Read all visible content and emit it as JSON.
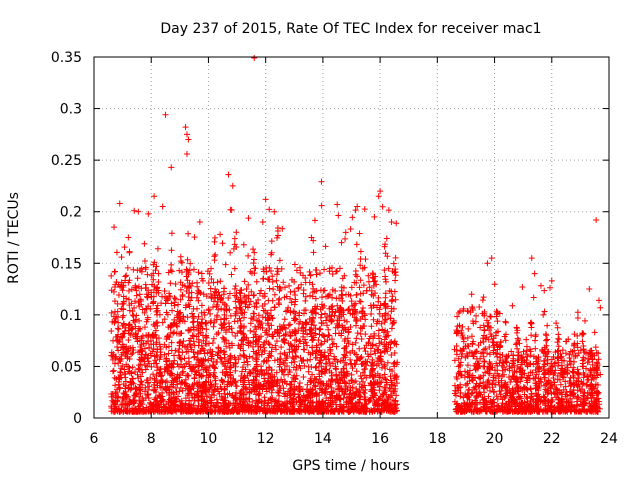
{
  "chart_data": {
    "type": "scatter",
    "title": "Day 237 of 2015, Rate Of TEC Index for receiver mac1",
    "xlabel": "GPS time / hours",
    "ylabel": "ROTI / TECUs",
    "xlim": [
      6,
      24
    ],
    "ylim": [
      0,
      0.35
    ],
    "xticks": [
      6,
      8,
      10,
      12,
      14,
      16,
      18,
      20,
      22,
      24
    ],
    "yticks": [
      0,
      0.05,
      0.1,
      0.15,
      0.2,
      0.25,
      0.3,
      0.35
    ],
    "xtick_labels": [
      "6",
      "8",
      "10",
      "12",
      "14",
      "16",
      "18",
      "20",
      "22",
      "24"
    ],
    "ytick_labels": [
      "0",
      "0.05",
      "0.1",
      "0.15",
      "0.2",
      "0.25",
      "0.3",
      "0.35"
    ],
    "grid": true,
    "marker": "+",
    "color": "#ff0000",
    "series": [
      {
        "name": "ROTI",
        "segments": [
          {
            "x_range": [
              6.6,
              16.6
            ],
            "description": "dense point cloud, typical 0.01-0.12 TECU/min",
            "outliers": [
              {
                "x": 8.5,
                "y": 0.294
              },
              {
                "x": 9.2,
                "y": 0.282
              },
              {
                "x": 9.25,
                "y": 0.275
              },
              {
                "x": 9.3,
                "y": 0.27
              },
              {
                "x": 11.6,
                "y": 0.349
              },
              {
                "x": 10.7,
                "y": 0.236
              },
              {
                "x": 13.95,
                "y": 0.229
              },
              {
                "x": 8.7,
                "y": 0.243
              },
              {
                "x": 9.25,
                "y": 0.256
              },
              {
                "x": 16.0,
                "y": 0.22
              },
              {
                "x": 15.95,
                "y": 0.215
              },
              {
                "x": 6.9,
                "y": 0.208
              },
              {
                "x": 10.85,
                "y": 0.225
              },
              {
                "x": 12.0,
                "y": 0.212
              },
              {
                "x": 12.3,
                "y": 0.2
              },
              {
                "x": 14.5,
                "y": 0.207
              },
              {
                "x": 15.2,
                "y": 0.205
              },
              {
                "x": 15.8,
                "y": 0.195
              },
              {
                "x": 8.1,
                "y": 0.215
              },
              {
                "x": 8.4,
                "y": 0.205
              },
              {
                "x": 9.7,
                "y": 0.19
              },
              {
                "x": 6.7,
                "y": 0.185
              },
              {
                "x": 7.2,
                "y": 0.175
              },
              {
                "x": 11.9,
                "y": 0.19
              },
              {
                "x": 13.6,
                "y": 0.175
              },
              {
                "x": 14.8,
                "y": 0.18
              },
              {
                "x": 16.4,
                "y": 0.19
              }
            ]
          },
          {
            "x_range": [
              18.6,
              23.7
            ],
            "description": "sparser point cloud, typical 0.01-0.08 TECU/min",
            "outliers": [
              {
                "x": 19.9,
                "y": 0.155
              },
              {
                "x": 19.75,
                "y": 0.15
              },
              {
                "x": 21.3,
                "y": 0.155
              },
              {
                "x": 21.4,
                "y": 0.14
              },
              {
                "x": 22.0,
                "y": 0.133
              },
              {
                "x": 23.55,
                "y": 0.192
              },
              {
                "x": 23.65,
                "y": 0.114
              },
              {
                "x": 19.2,
                "y": 0.12
              },
              {
                "x": 20.8,
                "y": 0.085
              },
              {
                "x": 21.7,
                "y": 0.1
              },
              {
                "x": 23.5,
                "y": 0.083
              }
            ]
          }
        ]
      }
    ]
  }
}
